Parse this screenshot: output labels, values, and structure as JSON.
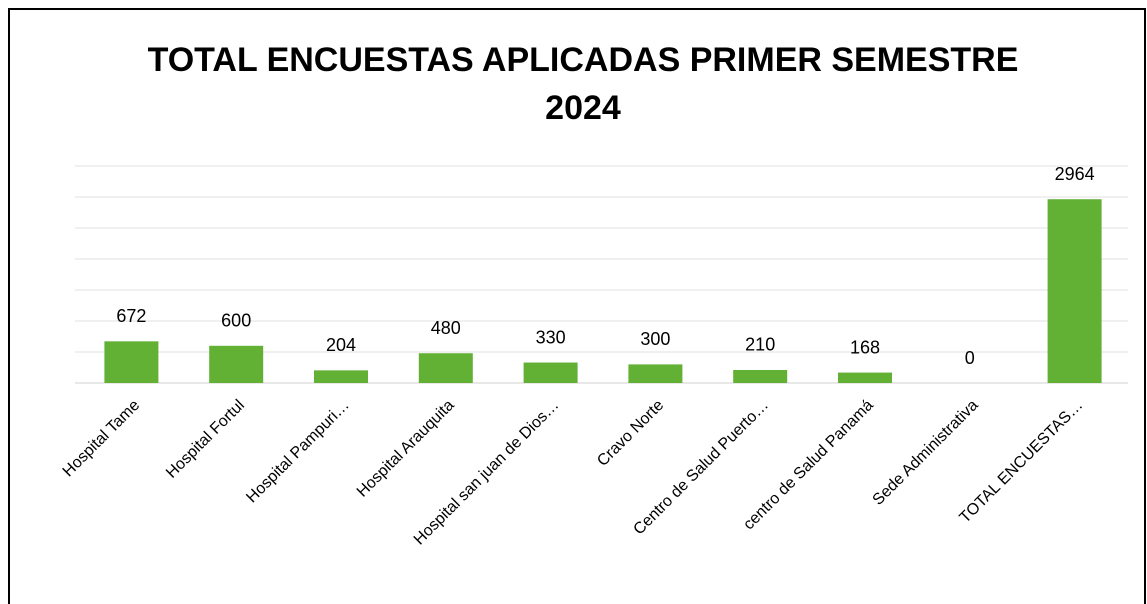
{
  "chart_data": {
    "type": "bar",
    "title": "TOTAL ENCUESTAS APLICADAS PRIMER SEMESTRE 2024",
    "categories": [
      "Hospital Tame",
      "Hospital Fortul",
      "Hospital Pampuri…",
      "Hospital Arauquita",
      "Hospital san juan de Dios…",
      "Cravo Norte",
      "Centro de Salud Puerto…",
      "centro de Salud Panamá",
      "Sede Administrativa",
      "TOTAL ENCUESTAS…"
    ],
    "values": [
      672,
      600,
      204,
      480,
      330,
      300,
      210,
      168,
      0,
      2964
    ],
    "color": "#62b034",
    "ylim": [
      0,
      3500
    ],
    "yticks": [
      0,
      500,
      1000,
      1500,
      2000,
      2500,
      3000,
      3500
    ],
    "grid": true
  }
}
